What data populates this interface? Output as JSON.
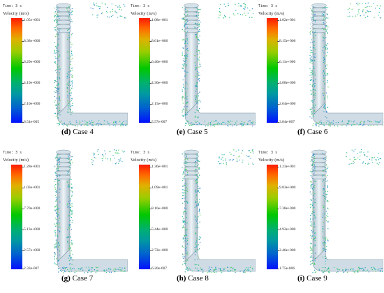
{
  "time_label": "Time: 3 s",
  "legend_title": "Velocity (m/s)",
  "panels": [
    {
      "letter": "(d)",
      "case": "Case 4",
      "ticks": [
        "1.05e+001",
        "8.38e+000",
        "6.29e+000",
        "4.19e+000",
        "2.10e+000",
        "6.54e-005"
      ]
    },
    {
      "letter": "(e)",
      "case": "Case 5",
      "ticks": [
        "1.08e+001",
        "8.61e+000",
        "6.46e+000",
        "4.30e+000",
        "2.15e+000",
        "5.57e-007"
      ]
    },
    {
      "letter": "(f)",
      "case": "Case 6",
      "ticks": [
        "1.02e+001",
        "8.15e+000",
        "6.11e+000",
        "4.08e+000",
        "2.04e+000",
        "3.84e-007"
      ]
    },
    {
      "letter": "(g)",
      "case": "Case 7",
      "ticks": [
        "1.28e+001",
        "1.03e+001",
        "7.70e+000",
        "5.13e+000",
        "2.57e+000",
        "2.33e-007"
      ]
    },
    {
      "letter": "(h)",
      "case": "Case 8",
      "ticks": [
        "1.36e+001",
        "1.09e+001",
        "8.16e+000",
        "5.44e+000",
        "2.72e+000",
        "6.20e-007"
      ]
    },
    {
      "letter": "(i)",
      "case": "Case 9",
      "ticks": [
        "1.23e+001",
        "9.83e+000",
        "7.38e+000",
        "4.92e+000",
        "2.46e+000",
        "1.75e-006"
      ]
    }
  ]
}
